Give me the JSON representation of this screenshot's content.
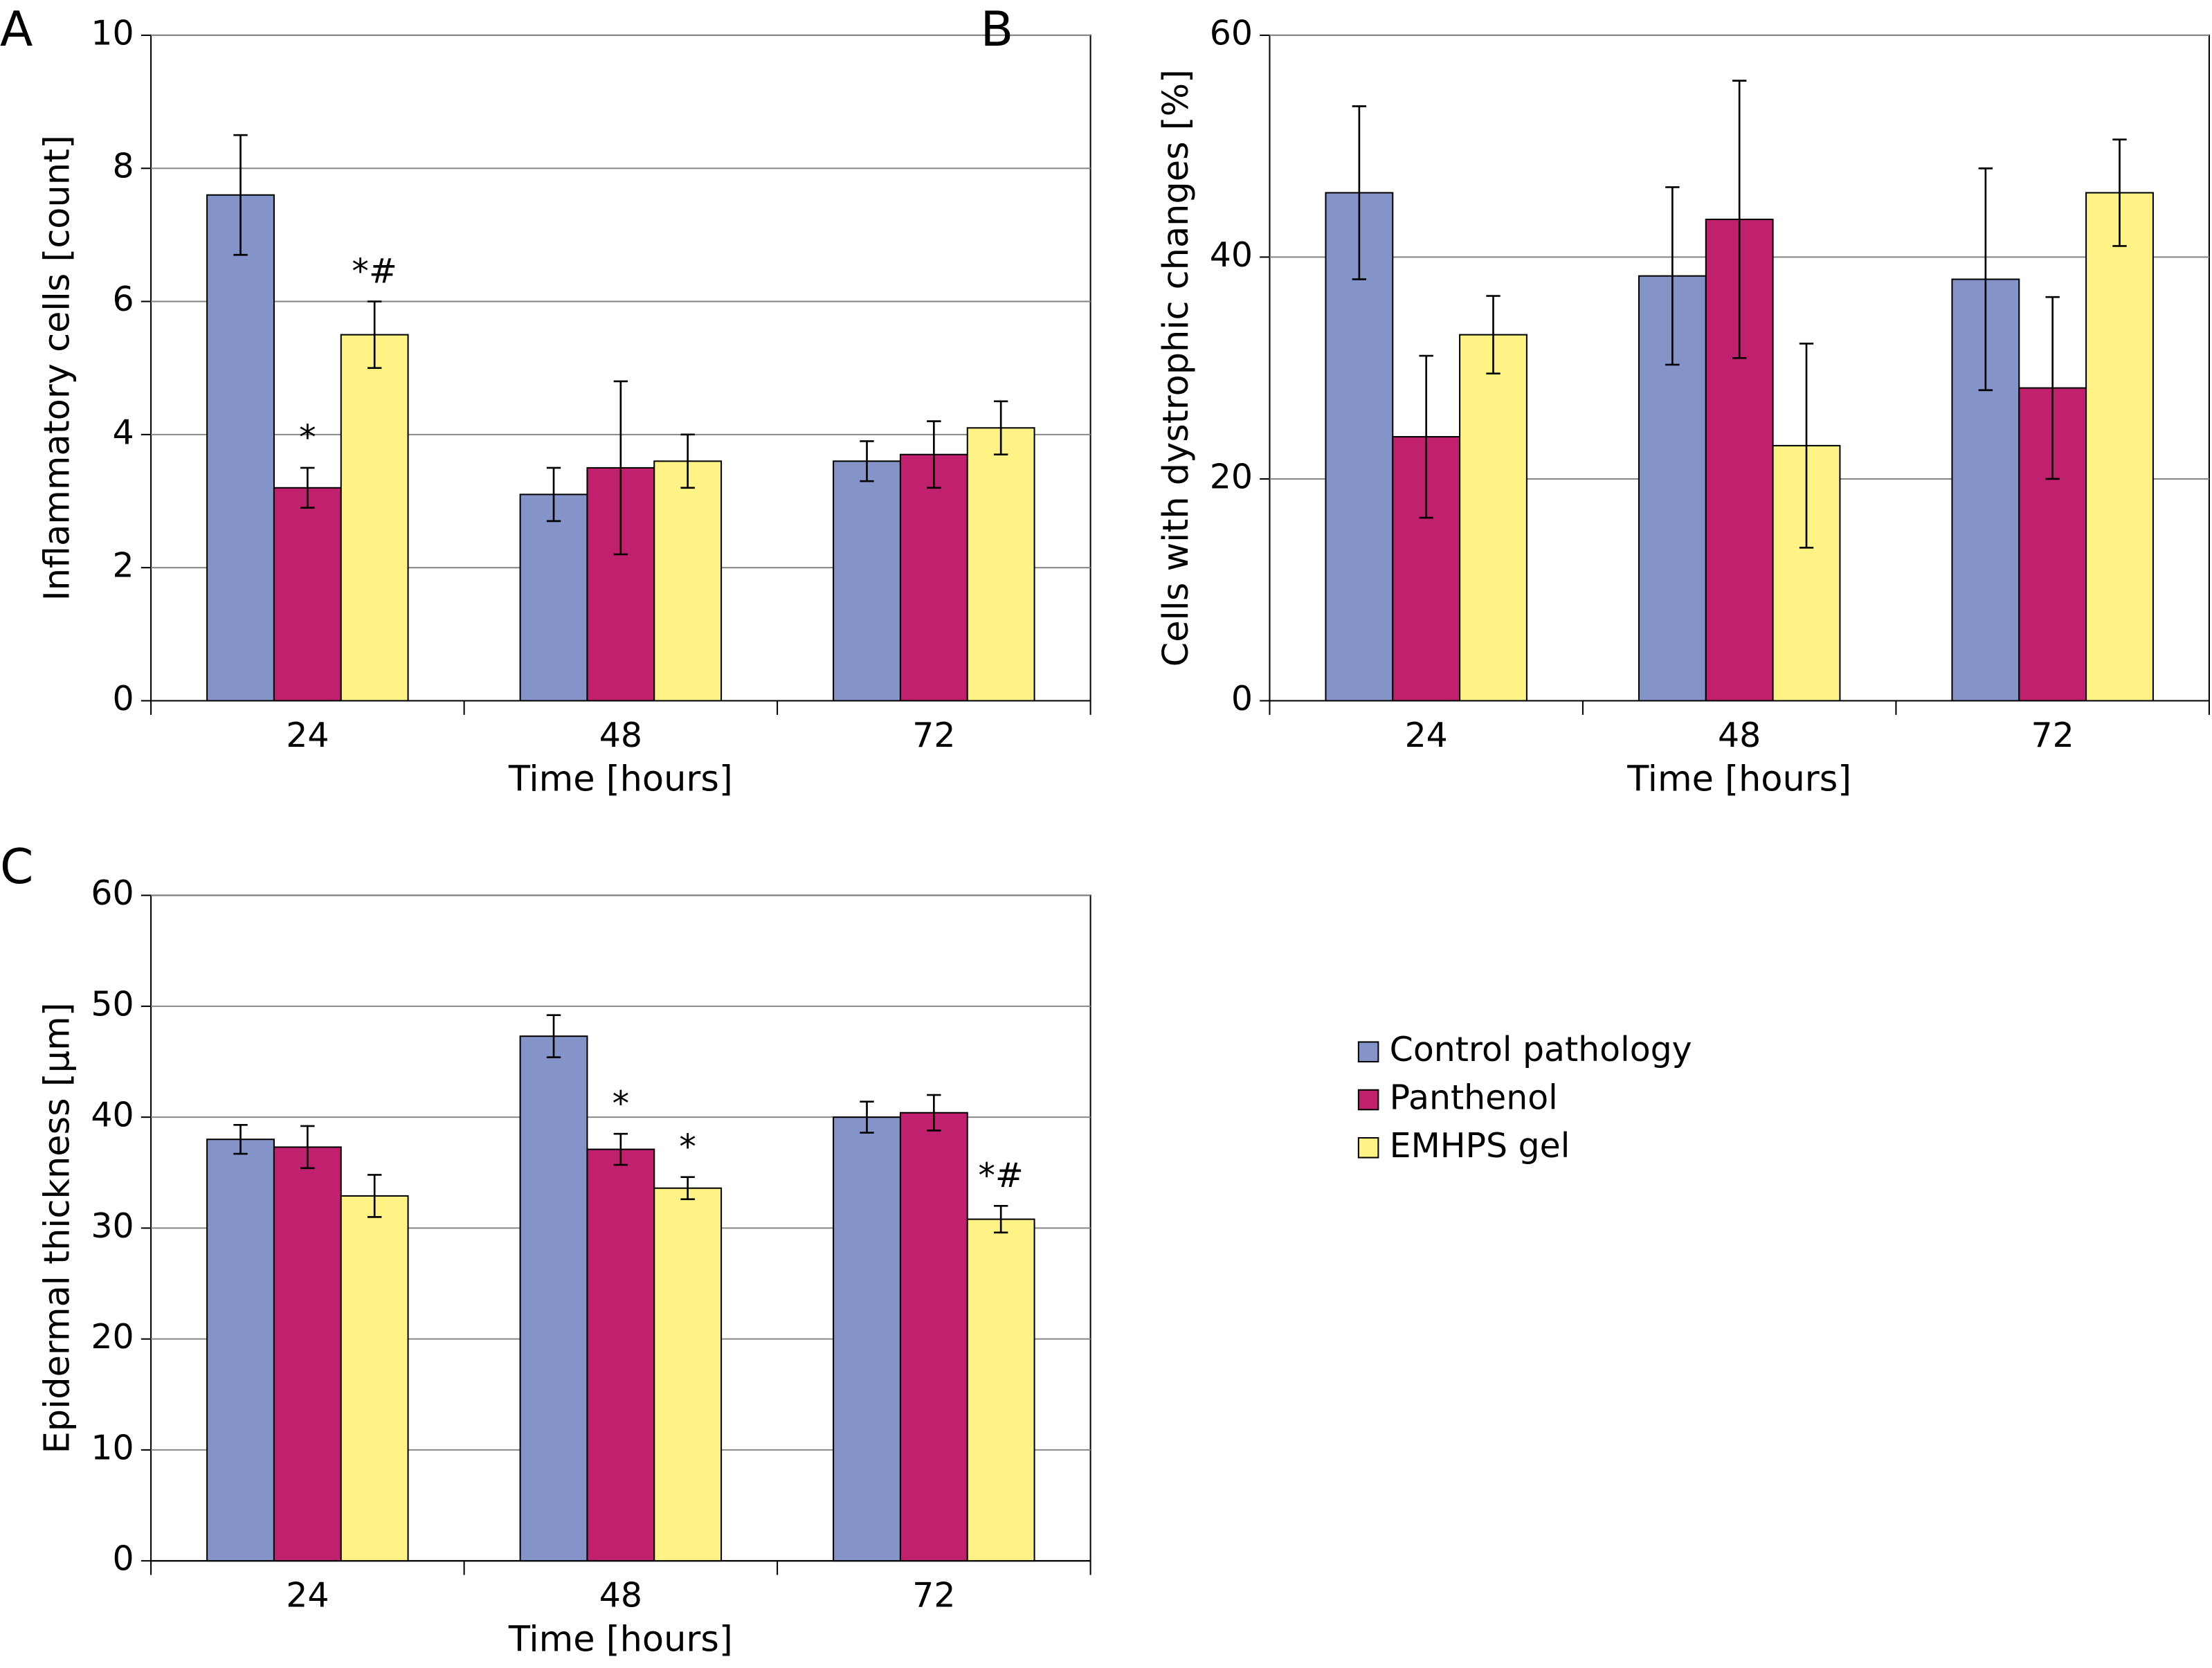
{
  "chart_data": [
    {
      "type": "bar",
      "panel": "A",
      "ylabel": "Inflammatory cells [count]",
      "xlabel": "Time [hours]",
      "categories": [
        "24",
        "48",
        "72"
      ],
      "ylim": [
        0,
        10
      ],
      "yticks": [
        0,
        2,
        4,
        6,
        8,
        10
      ],
      "grid": true,
      "series": [
        {
          "color": "#8594c8",
          "values": [
            7.6,
            3.1,
            3.6
          ],
          "errors": [
            0.9,
            0.4,
            0.3
          ],
          "significance": [
            null,
            null,
            null
          ]
        },
        {
          "color": "#c0206e",
          "values": [
            3.2,
            3.5,
            3.7
          ],
          "errors": [
            0.3,
            1.3,
            0.5
          ],
          "significance": [
            "*",
            null,
            null
          ]
        },
        {
          "color": "#fff385",
          "values": [
            5.5,
            3.6,
            4.1
          ],
          "errors": [
            0.5,
            0.4,
            0.4
          ],
          "significance": [
            "*#",
            null,
            null
          ]
        }
      ]
    },
    {
      "type": "bar",
      "panel": "B",
      "ylabel": "Cells with dystrophic changes [%]",
      "xlabel": "Time [hours]",
      "categories": [
        "24",
        "48",
        "72"
      ],
      "ylim": [
        0,
        60
      ],
      "yticks": [
        0,
        20,
        40,
        60
      ],
      "grid": true,
      "series": [
        {
          "color": "#8594c8",
          "values": [
            45.8,
            38.3,
            38
          ],
          "errors": [
            7.8,
            8,
            10
          ],
          "significance": [
            null,
            null,
            null
          ]
        },
        {
          "color": "#c0206e",
          "values": [
            23.8,
            43.4,
            28.2
          ],
          "errors": [
            7.3,
            12.5,
            8.2
          ],
          "significance": [
            null,
            null,
            null
          ]
        },
        {
          "color": "#fff385",
          "values": [
            33,
            23,
            45.8
          ],
          "errors": [
            3.5,
            9.2,
            4.8
          ],
          "significance": [
            null,
            null,
            null
          ]
        }
      ]
    },
    {
      "type": "bar",
      "panel": "C",
      "ylabel": "Epidermal thickness [µm]",
      "xlabel": "Time [hours]",
      "categories": [
        "24",
        "48",
        "72"
      ],
      "ylim": [
        0,
        60
      ],
      "yticks": [
        0,
        10,
        20,
        30,
        40,
        50,
        60
      ],
      "grid": true,
      "legend": "right",
      "series": [
        {
          "name": "Control pathology",
          "color": "#8594c8",
          "values": [
            38,
            47.3,
            40
          ],
          "errors": [
            1.3,
            1.9,
            1.4
          ],
          "significance": [
            null,
            null,
            null
          ]
        },
        {
          "name": "Panthenol",
          "color": "#c0206e",
          "values": [
            37.3,
            37.1,
            40.4
          ],
          "errors": [
            1.9,
            1.4,
            1.6
          ],
          "significance": [
            null,
            "*",
            null
          ]
        },
        {
          "name": "EMHPS gel",
          "color": "#fff385",
          "values": [
            32.9,
            33.6,
            30.8
          ],
          "errors": [
            1.9,
            1.0,
            1.2
          ],
          "significance": [
            null,
            "*",
            "*#"
          ]
        }
      ]
    }
  ]
}
